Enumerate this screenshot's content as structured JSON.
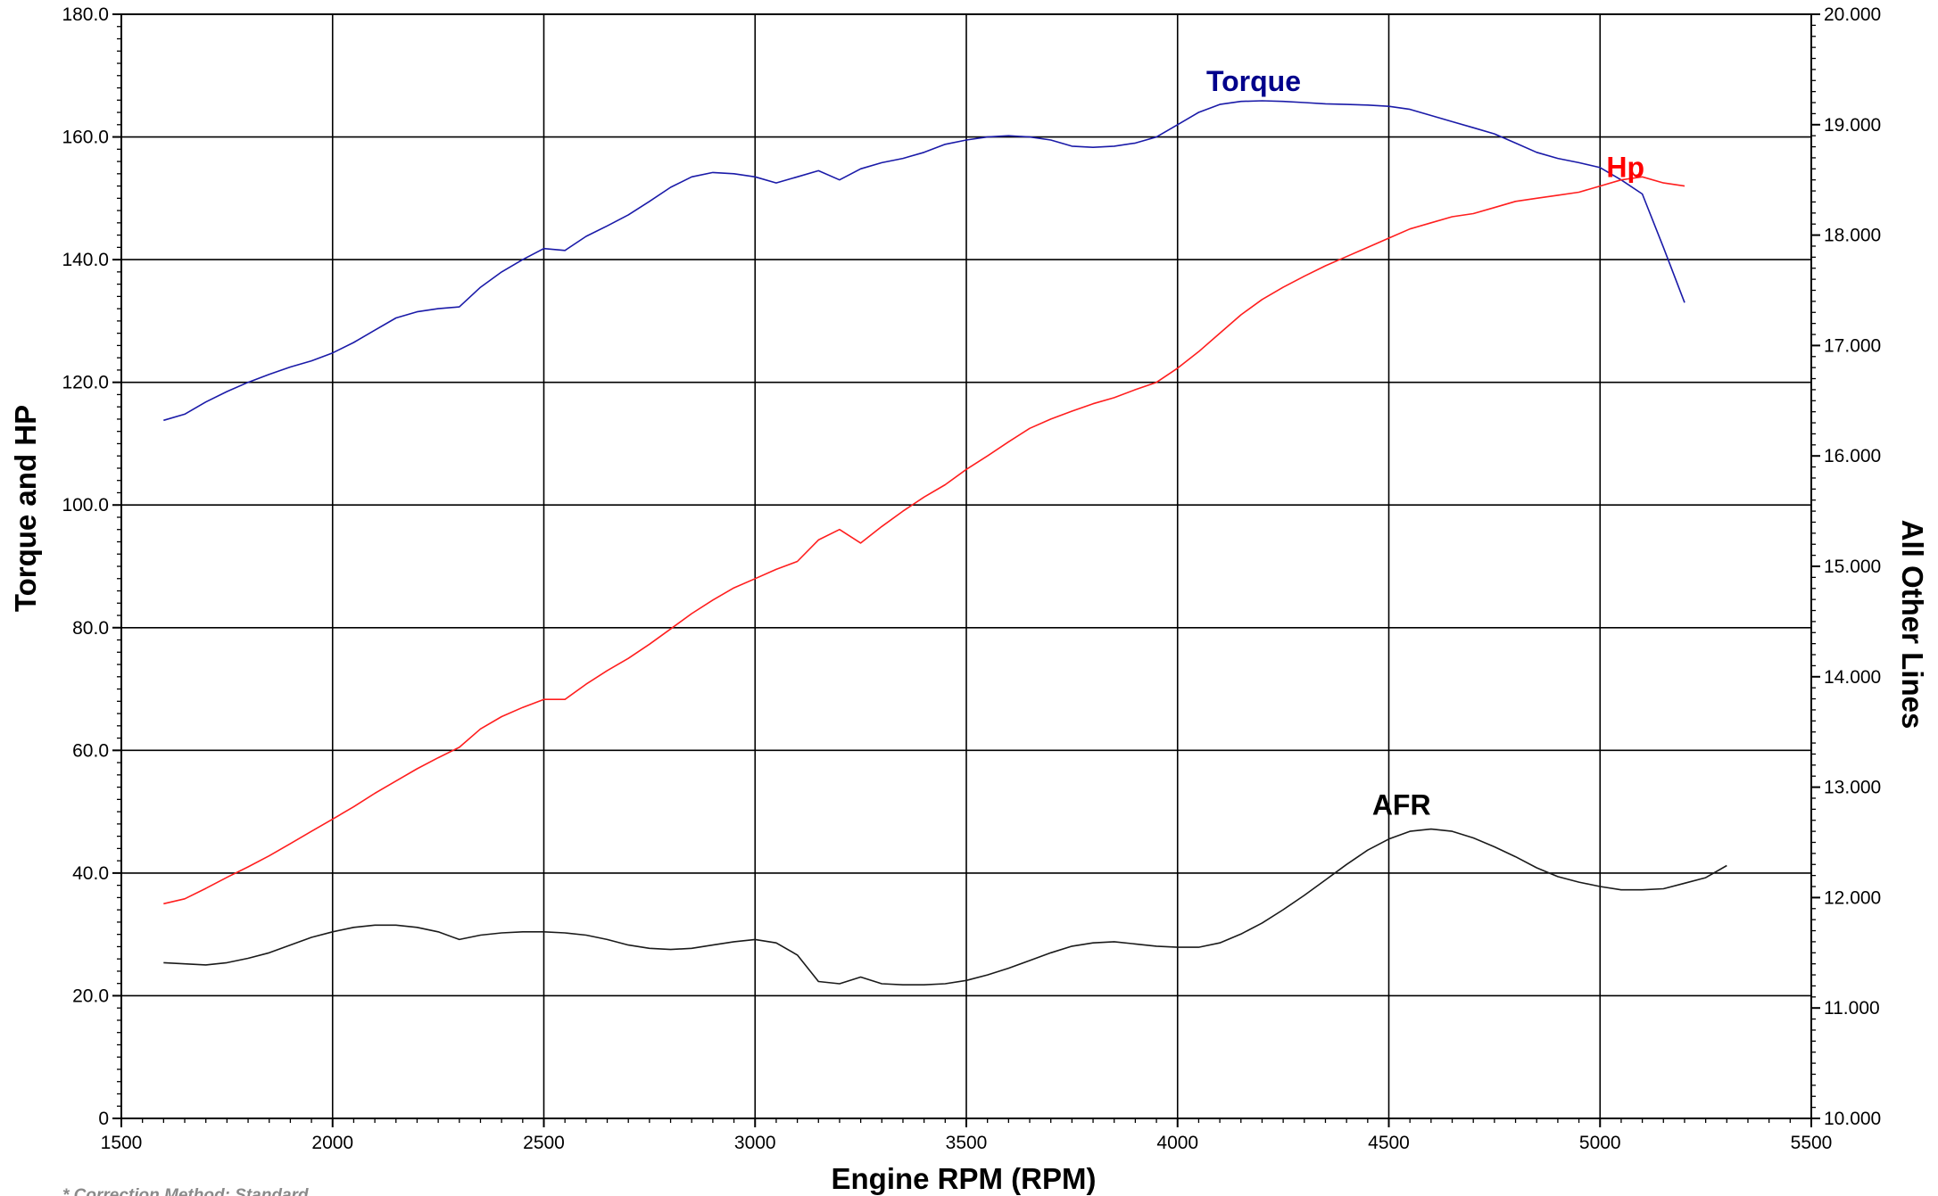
{
  "chart_data": {
    "type": "line",
    "title": "",
    "xlabel": "Engine RPM (RPM)",
    "ylabel_left": "Torque and HP",
    "ylabel_right": "All Other Lines",
    "footnote": "* Correction Method: Standard",
    "xlim": [
      1500,
      5500
    ],
    "ylim_left": [
      0,
      180
    ],
    "ylim_right": [
      10,
      20
    ],
    "grid": true,
    "x_ticks": [
      "1500",
      "2000",
      "2500",
      "3000",
      "3500",
      "4000",
      "4500",
      "5000",
      "5500"
    ],
    "y_ticks_left": [
      "0",
      "20.0",
      "40.0",
      "60.0",
      "80.0",
      "100.0",
      "120.0",
      "140.0",
      "160.0",
      "180.0"
    ],
    "y_ticks_right": [
      "10.000",
      "11.000",
      "12.000",
      "13.000",
      "14.000",
      "15.000",
      "16.000",
      "17.000",
      "18.000",
      "19.000",
      "20.000"
    ],
    "series": [
      {
        "name": "Torque",
        "axis": "left",
        "color": "#1a1aa8",
        "label_color": "#00008b",
        "x": [
          1600,
          1650,
          1700,
          1750,
          1800,
          1850,
          1900,
          1950,
          2000,
          2050,
          2100,
          2150,
          2200,
          2250,
          2300,
          2350,
          2400,
          2450,
          2500,
          2550,
          2600,
          2650,
          2700,
          2750,
          2800,
          2850,
          2900,
          2950,
          3000,
          3050,
          3100,
          3150,
          3200,
          3250,
          3300,
          3350,
          3400,
          3450,
          3500,
          3550,
          3600,
          3650,
          3700,
          3750,
          3800,
          3850,
          3900,
          3950,
          4000,
          4050,
          4100,
          4150,
          4200,
          4250,
          4300,
          4350,
          4400,
          4450,
          4500,
          4550,
          4600,
          4650,
          4700,
          4750,
          4800,
          4850,
          4900,
          4950,
          5000,
          5050,
          5100,
          5150,
          5200,
          5250,
          5300
        ],
        "values": [
          113.8,
          114.8,
          116.8,
          118.5,
          120.0,
          121.3,
          122.5,
          123.5,
          124.8,
          126.5,
          128.5,
          130.5,
          131.5,
          132.0,
          132.3,
          135.5,
          138.0,
          140.0,
          141.8,
          141.5,
          143.8,
          145.5,
          147.3,
          149.5,
          151.8,
          153.5,
          154.2,
          154.0,
          153.5,
          152.5,
          153.5,
          154.5,
          153.0,
          154.8,
          155.8,
          156.5,
          157.5,
          158.8,
          159.5,
          160.0,
          160.2,
          160.0,
          159.5,
          158.5,
          158.3,
          158.5,
          159.0,
          160.0,
          162.0,
          164.0,
          165.3,
          165.8,
          165.9,
          165.8,
          165.6,
          165.4,
          165.3,
          165.2,
          165.0,
          164.5,
          163.5,
          162.5,
          161.5,
          160.5,
          159.0,
          157.5,
          156.5,
          155.8,
          155.0,
          153.0,
          150.7,
          142.0,
          133.0,
          null,
          null
        ],
        "x_end": [
          1600,
          1650,
          1700,
          1750,
          1800,
          1850,
          1900,
          1950,
          2000,
          2050,
          2100,
          2150,
          2200,
          2250,
          2300,
          2350,
          2400,
          2450,
          2500,
          2550,
          2600,
          2650,
          2700,
          2750,
          2800,
          2850,
          2900,
          2950,
          3000,
          3050,
          3100,
          3150,
          3200,
          3250,
          3300,
          3350,
          3400,
          3450,
          3500,
          3550,
          3600,
          3650,
          3700,
          3750,
          3800,
          3850,
          3900,
          3950,
          4000,
          4050,
          4100,
          4150,
          4200,
          4250,
          4300,
          4350,
          4400,
          4450,
          4500,
          4550,
          4600,
          4650,
          4700,
          4750,
          4800,
          4850,
          4900,
          4950,
          5000,
          5050,
          5100,
          5150,
          5200,
          5250,
          5300
        ]
      },
      {
        "name": "Hp",
        "axis": "left",
        "color": "#ff1e1e",
        "label_color": "#ff0000",
        "x": [
          1600,
          1650,
          1700,
          1750,
          1800,
          1850,
          1900,
          1950,
          2000,
          2050,
          2100,
          2150,
          2200,
          2250,
          2300,
          2350,
          2400,
          2450,
          2500,
          2550,
          2600,
          2650,
          2700,
          2750,
          2800,
          2850,
          2900,
          2950,
          3000,
          3050,
          3100,
          3150,
          3200,
          3250,
          3300,
          3350,
          3400,
          3450,
          3500,
          3550,
          3600,
          3650,
          3700,
          3750,
          3800,
          3850,
          3900,
          3950,
          4000,
          4050,
          4100,
          4150,
          4200,
          4250,
          4300,
          4350,
          4400,
          4450,
          4500,
          4550,
          4600,
          4650,
          4700,
          4750,
          4800,
          4850,
          4900,
          4950,
          5000,
          5050,
          5100,
          5150,
          5200,
          5250,
          5300
        ],
        "values": [
          35.0,
          35.8,
          37.5,
          39.3,
          41.0,
          42.8,
          44.8,
          46.8,
          48.8,
          50.8,
          53.0,
          55.0,
          57.0,
          58.8,
          60.5,
          63.5,
          65.5,
          67.0,
          68.3,
          68.3,
          70.8,
          73.0,
          75.0,
          77.3,
          79.8,
          82.3,
          84.5,
          86.5,
          88.0,
          89.5,
          90.8,
          94.3,
          96.0,
          93.8,
          96.5,
          99.0,
          101.3,
          103.3,
          105.8,
          108.0,
          110.3,
          112.5,
          114.0,
          115.3,
          116.5,
          117.5,
          118.8,
          120.0,
          122.3,
          125.0,
          128.0,
          131.0,
          133.5,
          135.5,
          137.3,
          139.0,
          140.5,
          142.0,
          143.5,
          145.0,
          146.0,
          147.0,
          147.5,
          148.5,
          149.5,
          150.0,
          150.5,
          151.0,
          152.0,
          153.0,
          153.5,
          152.5,
          152.0,
          null,
          null
        ]
      },
      {
        "name": "AFR",
        "axis": "right",
        "color": "#1a1a1a",
        "label_color": "#000000",
        "x": [
          1600,
          1650,
          1700,
          1750,
          1800,
          1850,
          1900,
          1950,
          2000,
          2050,
          2100,
          2150,
          2200,
          2250,
          2300,
          2350,
          2400,
          2450,
          2500,
          2550,
          2600,
          2650,
          2700,
          2750,
          2800,
          2850,
          2900,
          2950,
          3000,
          3050,
          3100,
          3150,
          3200,
          3250,
          3300,
          3350,
          3400,
          3450,
          3500,
          3550,
          3600,
          3650,
          3700,
          3750,
          3800,
          3850,
          3900,
          3950,
          4000,
          4050,
          4100,
          4150,
          4200,
          4250,
          4300,
          4350,
          4400,
          4450,
          4500,
          4550,
          4600,
          4650,
          4700,
          4750,
          4800,
          4850,
          4900,
          4950,
          5000,
          5050,
          5100,
          5150,
          5200,
          5250,
          5300
        ],
        "values": [
          11.41,
          11.4,
          11.39,
          11.41,
          11.45,
          11.5,
          11.57,
          11.64,
          11.69,
          11.73,
          11.75,
          11.75,
          11.73,
          11.69,
          11.62,
          11.66,
          11.68,
          11.69,
          11.69,
          11.68,
          11.66,
          11.62,
          11.57,
          11.54,
          11.53,
          11.54,
          11.57,
          11.6,
          11.62,
          11.59,
          11.48,
          11.24,
          11.22,
          11.28,
          11.22,
          11.21,
          11.21,
          11.22,
          11.25,
          11.3,
          11.36,
          11.43,
          11.5,
          11.56,
          11.59,
          11.6,
          11.58,
          11.56,
          11.55,
          11.55,
          11.59,
          11.67,
          11.77,
          11.89,
          12.02,
          12.16,
          12.3,
          12.43,
          12.53,
          12.6,
          12.62,
          12.6,
          12.54,
          12.46,
          12.37,
          12.27,
          12.19,
          12.14,
          12.1,
          12.07,
          12.07,
          12.08,
          12.13,
          12.18,
          12.29
        ]
      }
    ],
    "annotations": [
      {
        "text": "Torque",
        "series": "Torque",
        "x": 4180,
        "y_left": 167.5
      },
      {
        "text": "Hp",
        "series": "Hp",
        "x": 5060,
        "y_left": 153.5
      },
      {
        "text": "AFR",
        "series": "AFR",
        "x": 4530,
        "y_right": 12.75
      }
    ]
  }
}
